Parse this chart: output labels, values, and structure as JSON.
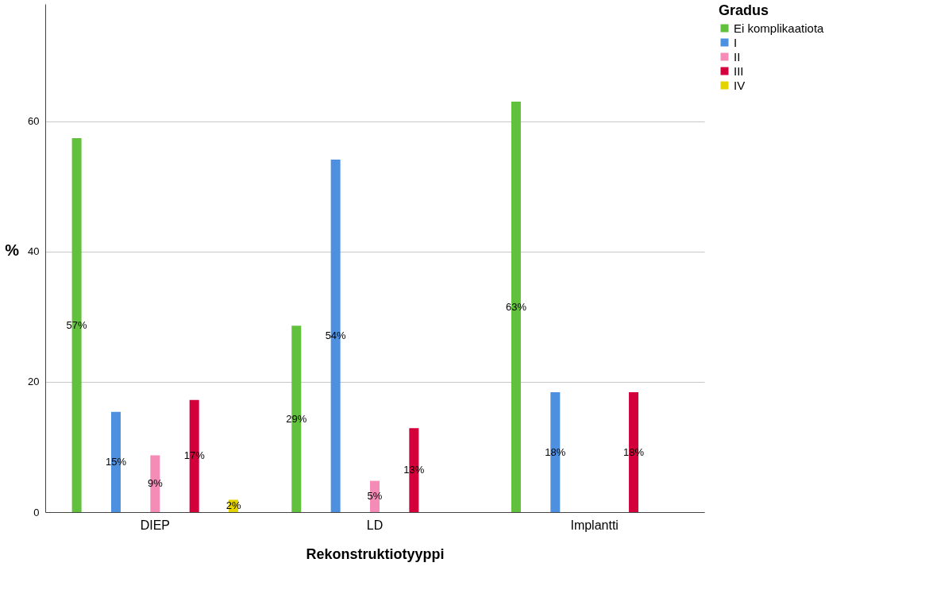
{
  "chart_data": {
    "type": "bar",
    "xlabel": "Rekonstruktiotyyppi",
    "ylabel": "%",
    "legend_title": "Gradus",
    "legend": "top right",
    "grid": "y",
    "categories": [
      "DIEP",
      "LD",
      "Implantti"
    ],
    "ylim": [
      0,
      78
    ],
    "yticks": [
      0,
      20,
      40,
      60
    ],
    "series": [
      {
        "name": "Ei komplikaatiota",
        "color": "#62c13c",
        "values": [
          57.4,
          28.6,
          63.0
        ],
        "value_labels": [
          "57%",
          "29%",
          "63%"
        ]
      },
      {
        "name": "I",
        "color": "#4d90e0",
        "values": [
          15.4,
          54.1,
          18.4
        ],
        "value_labels": [
          "15%",
          "54%",
          "18%"
        ]
      },
      {
        "name": "II",
        "color": "#f58cb8",
        "values": [
          8.7,
          4.8,
          null
        ],
        "value_labels": [
          "9%",
          "5%",
          null
        ]
      },
      {
        "name": "III",
        "color": "#d4003c",
        "values": [
          17.2,
          12.9,
          18.4
        ],
        "value_labels": [
          "17%",
          "13%",
          "18%"
        ]
      },
      {
        "name": "IV",
        "color": "#e3d400",
        "values": [
          1.9,
          null,
          null
        ],
        "value_labels": [
          "2%",
          null,
          null
        ]
      }
    ]
  }
}
